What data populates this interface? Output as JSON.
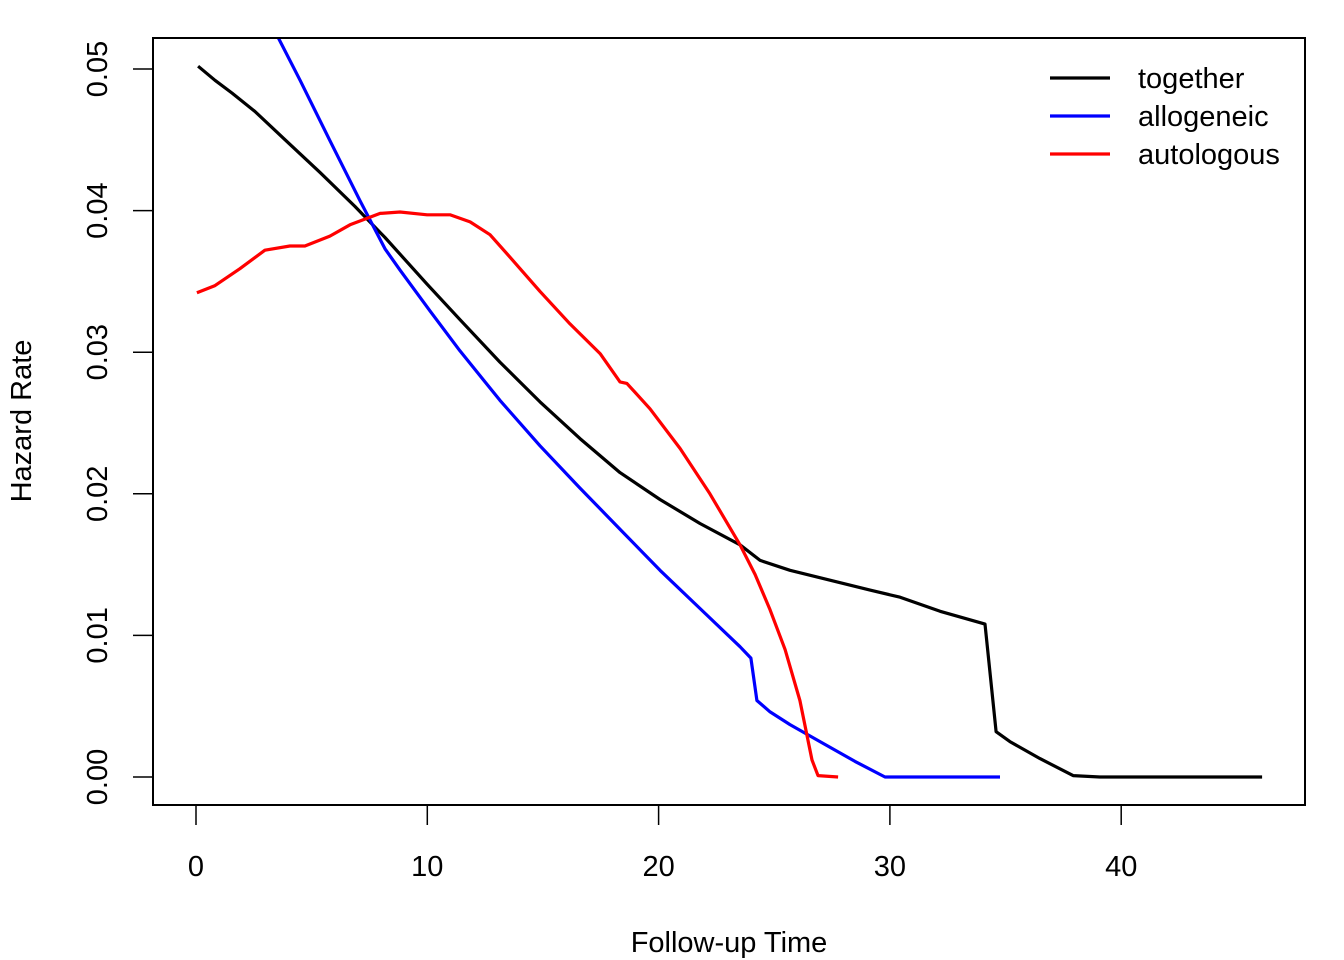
{
  "chart_data": {
    "type": "line",
    "title": "",
    "xlabel": "Follow-up Time",
    "ylabel": "Hazard Rate",
    "xlim": [
      -1.86,
      47.9
    ],
    "ylim": [
      -0.002,
      0.0522
    ],
    "xticks": [
      0,
      10,
      20,
      30,
      40
    ],
    "xtick_labels": [
      "0",
      "10",
      "20",
      "30",
      "40"
    ],
    "yticks": [
      0.0,
      0.01,
      0.02,
      0.03,
      0.04,
      0.05
    ],
    "ytick_labels": [
      "0.00",
      "0.01",
      "0.02",
      "0.03",
      "0.04",
      "0.05"
    ],
    "grid": false,
    "legend_position": "top-right",
    "series": [
      {
        "name": "together",
        "color": "#000000",
        "x": [
          0.09,
          0.82,
          1.56,
          2.55,
          3.85,
          5.36,
          6.87,
          8.17,
          9.99,
          11.41,
          13.14,
          14.87,
          16.6,
          18.33,
          20.06,
          21.79,
          23.52,
          24.39,
          25.68,
          27.41,
          29.14,
          30.44,
          32.17,
          34.11,
          34.59,
          35.19,
          36.49,
          37.92,
          39.08,
          46.09
        ],
        "y": [
          0.0502,
          0.0492,
          0.0483,
          0.047,
          0.045,
          0.0427,
          0.0403,
          0.0381,
          0.0348,
          0.0323,
          0.0293,
          0.0265,
          0.0239,
          0.0215,
          0.0196,
          0.0179,
          0.0164,
          0.0153,
          0.0146,
          0.0139,
          0.0132,
          0.0127,
          0.0117,
          0.0108,
          0.0032,
          0.0025,
          0.0013,
          0.0001,
          0.0,
          0.0
        ]
      },
      {
        "name": "allogeneic",
        "color": "#0000ff",
        "x": [
          3.56,
          4.5,
          5.8,
          7.09,
          8.17,
          8.82,
          10.12,
          11.41,
          13.14,
          14.87,
          16.6,
          18.33,
          20.06,
          21.79,
          23.52,
          23.99,
          24.25,
          24.82,
          25.68,
          26.98,
          28.49,
          29.79,
          34.76
        ],
        "y": [
          0.0522,
          0.0492,
          0.0449,
          0.0407,
          0.0373,
          0.0358,
          0.0329,
          0.0301,
          0.0266,
          0.0234,
          0.0204,
          0.0175,
          0.0146,
          0.0119,
          0.0092,
          0.0084,
          0.0054,
          0.0046,
          0.0037,
          0.0025,
          0.0011,
          0.0,
          0.0
        ]
      },
      {
        "name": "autologous",
        "color": "#ff0000",
        "x": [
          0.04,
          0.82,
          1.9,
          2.98,
          4.06,
          4.71,
          5.79,
          6.66,
          7.96,
          8.82,
          9.99,
          10.98,
          11.85,
          12.71,
          13.58,
          14.87,
          16.17,
          17.47,
          18.33,
          18.63,
          19.63,
          20.93,
          22.22,
          23.52,
          24.17,
          24.82,
          25.47,
          26.11,
          26.63,
          26.89,
          27.76
        ],
        "y": [
          0.0342,
          0.0347,
          0.0359,
          0.0372,
          0.0375,
          0.0375,
          0.0382,
          0.039,
          0.0398,
          0.0399,
          0.0397,
          0.0397,
          0.0392,
          0.0383,
          0.0367,
          0.0343,
          0.032,
          0.0299,
          0.0279,
          0.0278,
          0.026,
          0.0232,
          0.02,
          0.0164,
          0.0143,
          0.0118,
          0.009,
          0.0054,
          0.0012,
          0.0001,
          0.0
        ]
      }
    ]
  }
}
